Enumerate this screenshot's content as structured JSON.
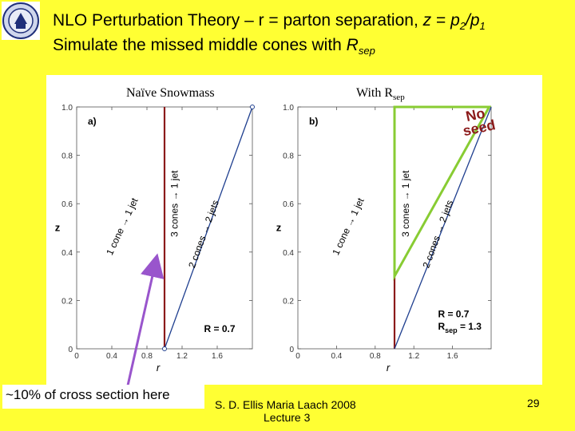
{
  "slide": {
    "title_line1_prefix": "NLO Perturbation Theory – r = parton separation, ",
    "title_z": "z",
    "title_eq": " = ",
    "title_p": "p",
    "title_sub2": "2",
    "title_slash": "/",
    "title_sub1": "1",
    "title_line2_prefix": "Simulate the missed middle cones with ",
    "title_R": "R",
    "title_sep": "sep",
    "logo_alt": "university-seal",
    "note": "~10% of cross section here",
    "footer_line1": "S. D. Ellis   Maria Laach 2008",
    "footer_line2": "Lecture 3",
    "page_number": "29",
    "colors": {
      "background": "#ffff33",
      "boundary_red": "#8b1a1a",
      "boundary_blue": "#1f3f8f",
      "seed_triangle": "#88cc33",
      "arrow_purple": "#9955cc"
    }
  },
  "chart_data": [
    {
      "type": "line",
      "panel": "a)",
      "caption": "Naïve Snowmass",
      "xlabel": "r",
      "ylabel": "z",
      "xlim": [
        0,
        2.0
      ],
      "ylim": [
        0,
        1.0
      ],
      "x_ticks": [
        "0",
        "0.4",
        "0.8",
        "1.2",
        "1.6"
      ],
      "y_ticks": [
        "0",
        "0.2",
        "0.4",
        "0.6",
        "0.8",
        "1.0"
      ],
      "series": [
        {
          "name": "r = 1 boundary",
          "x": [
            1.0,
            1.0
          ],
          "y": [
            0,
            1.0
          ],
          "color": "#8b1a1a"
        },
        {
          "name": "r = 1 + z boundary",
          "x": [
            1.0,
            2.0
          ],
          "y": [
            0,
            1.0
          ],
          "color": "#1f3f8f"
        }
      ],
      "region_labels": [
        "1 cone → 1 jet",
        "3 cones → 1 jet",
        "2 cones → 2 jets"
      ],
      "annotations": [
        "R = 0.7"
      ]
    },
    {
      "type": "line",
      "panel": "b)",
      "caption_R": "With R",
      "caption_sub": "sep",
      "xlabel": "r",
      "ylabel": "z",
      "xlim": [
        0,
        2.0
      ],
      "ylim": [
        0,
        1.0
      ],
      "x_ticks": [
        "0",
        "0.4",
        "0.8",
        "1.2",
        "1.6"
      ],
      "y_ticks": [
        "0",
        "0.2",
        "0.4",
        "0.6",
        "0.8",
        "1.0"
      ],
      "series": [
        {
          "name": "r = 1 boundary",
          "x": [
            1.0,
            1.0
          ],
          "y": [
            0,
            1.0
          ],
          "color": "#8b1a1a"
        },
        {
          "name": "r = 1 + z boundary",
          "x": [
            1.0,
            2.0
          ],
          "y": [
            0,
            1.0
          ],
          "color": "#1f3f8f"
        }
      ],
      "region_labels": [
        "1 cone → 1 jet",
        "3 cones → 1 jet",
        "2 cones → 2 jets"
      ],
      "annotations": [
        "R = 0.7"
      ],
      "annotation_Rsep_prefix": "R",
      "annotation_Rsep_sub": "sep",
      "annotation_Rsep_value": " = 1.3",
      "seed_text_line1": "No",
      "seed_text_line2": "seed"
    }
  ]
}
